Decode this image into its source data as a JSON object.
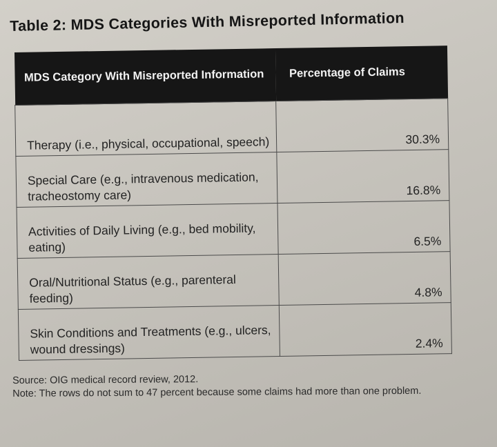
{
  "table": {
    "title": "Table 2: MDS Categories With Misreported Information",
    "headers": [
      "MDS Category With Misreported Information",
      "Percentage of Claims"
    ],
    "rows": [
      {
        "category": "Therapy (i.e., physical, occupational, speech)",
        "percentage": "30.3%"
      },
      {
        "category": "Special Care (e.g., intravenous medication, tracheostomy care)",
        "percentage": "16.8%"
      },
      {
        "category": "Activities of Daily Living (e.g., bed mobility, eating)",
        "percentage": "6.5%"
      },
      {
        "category": "Oral/Nutritional Status (e.g., parenteral feeding)",
        "percentage": "4.8%"
      },
      {
        "category": "Skin Conditions and Treatments (e.g., ulcers, wound dressings)",
        "percentage": "2.4%"
      }
    ],
    "source": "Source: OIG medical record review, 2012.",
    "note": "Note: The rows do not sum to 47 percent because some claims had more than one problem."
  }
}
